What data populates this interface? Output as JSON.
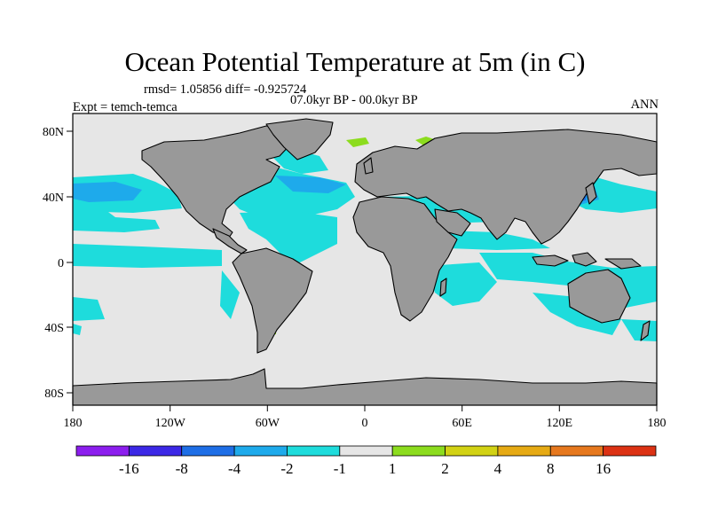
{
  "title": "Ocean Potential Temperature at 5m (in C)",
  "stats": "rmsd= 1.05856 diff= -0.925724",
  "period": "07.0kyr BP - 00.0kyr BP",
  "experiment": "Expt = temch-temca",
  "season": "ANN",
  "x_ticks": [
    "180",
    "120W",
    "60W",
    "0",
    "60E",
    "120E",
    "180"
  ],
  "y_ticks": [
    "80N",
    "40N",
    "0",
    "40S",
    "80S"
  ],
  "colorbar": {
    "colors": [
      "#8c1eee",
      "#3c28e6",
      "#1e6ee6",
      "#1eaaeb",
      "#1edcdc",
      "#e6e6e6",
      "#8cdc1e",
      "#d2d214",
      "#e6aa14",
      "#e6781e",
      "#dc3214"
    ],
    "labels": [
      "-16",
      "-8",
      "-4",
      "-2",
      "-1",
      "1",
      "2",
      "4",
      "8",
      "16"
    ]
  },
  "colors": {
    "land": "#999999",
    "ocean_neutral": "#e6e6e6",
    "cool": "#1edcdc",
    "cooler": "#1eaaeb",
    "coolest": "#1e6ee6",
    "warm": "#8cdc1e"
  }
}
